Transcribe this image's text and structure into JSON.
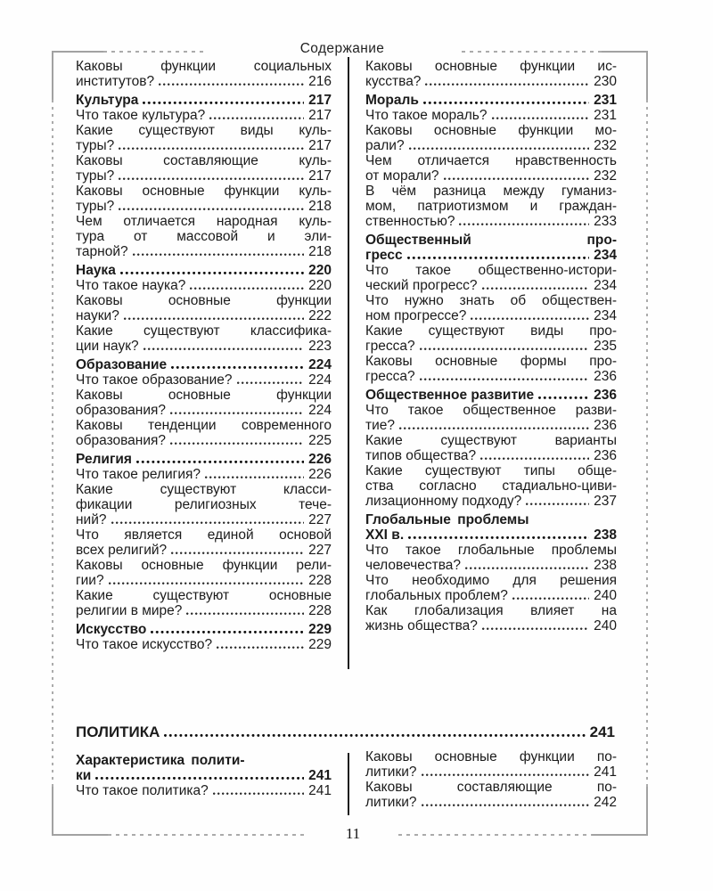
{
  "page": {
    "header_title": "Содержание",
    "page_number": "11"
  },
  "style": {
    "ink_color": "#1b1b1b",
    "frame_color": "#a2a2a2",
    "background_color": "#fefefe"
  },
  "toc": {
    "top_left": [
      {
        "lines": [
          "Каковы функции социальных"
        ],
        "last": "институтов?",
        "page": "216"
      },
      {
        "h": true,
        "last": "Культура",
        "page": "217"
      },
      {
        "last": "Что такое культура?",
        "page": "217"
      },
      {
        "lines": [
          "Какие существуют виды куль-"
        ],
        "last": "туры?",
        "page": "217"
      },
      {
        "lines": [
          "Каковы составляющие куль-"
        ],
        "last": "туры?",
        "page": "217"
      },
      {
        "lines": [
          "Каковы основные функции куль-"
        ],
        "last": "туры?",
        "page": "218"
      },
      {
        "lines": [
          "Чем отличается народная куль-",
          "тура от массовой и эли-"
        ],
        "last": "тарной?",
        "page": "218"
      },
      {
        "h": true,
        "last": "Наука",
        "page": "220"
      },
      {
        "last": "Что такое наука?",
        "page": "220"
      },
      {
        "lines": [
          "Каковы основные функции"
        ],
        "last": "науки?",
        "page": "222"
      },
      {
        "lines": [
          "Какие существуют классифика-"
        ],
        "last": "ции наук?",
        "page": "223"
      },
      {
        "h": true,
        "last": "Образование",
        "page": "224"
      },
      {
        "last": "Что такое образование?",
        "page": "224"
      },
      {
        "lines": [
          "Каковы основные функции"
        ],
        "last": "образования?",
        "page": "224"
      },
      {
        "lines": [
          "Каковы тенденции современного"
        ],
        "last": "образования?",
        "page": "225"
      },
      {
        "h": true,
        "last": "Религия",
        "page": "226"
      },
      {
        "last": "Что такое религия?",
        "page": "226"
      },
      {
        "lines": [
          "Какие существуют класси-",
          "фикации религиозных тече-"
        ],
        "last": "ний?",
        "page": "227"
      },
      {
        "lines": [
          "Что является единой основой"
        ],
        "last": "всех религий?",
        "page": "227"
      },
      {
        "lines": [
          "Каковы основные функции рели-"
        ],
        "last": "гии?",
        "page": "228"
      },
      {
        "lines": [
          "Какие существуют основные"
        ],
        "last": "религии в мире?",
        "page": "228"
      },
      {
        "h": true,
        "last": "Искусство",
        "page": "229"
      },
      {
        "last": "Что такое искусство?",
        "page": "229"
      }
    ],
    "top_right": [
      {
        "lines": [
          "Каковы основные функции ис-"
        ],
        "last": "кусства?",
        "page": "230"
      },
      {
        "h": true,
        "last": "Мораль",
        "page": "231"
      },
      {
        "last": "Что такое мораль?",
        "page": "231"
      },
      {
        "lines": [
          "Каковы основные функции мо-"
        ],
        "last": "рали?",
        "page": "232"
      },
      {
        "lines": [
          "Чем отличается нравственность"
        ],
        "last": "от морали?",
        "page": "232"
      },
      {
        "lines": [
          "В чём разница между гуманиз-",
          "мом, патриотизмом и граждан-"
        ],
        "last": "ственностью?",
        "page": "233"
      },
      {
        "h": true,
        "lines": [
          "Общественный про-"
        ],
        "last": "гресс",
        "page": "234"
      },
      {
        "lines": [
          "Что такое общественно-истори-"
        ],
        "last": "ческий прогресс?",
        "page": "234"
      },
      {
        "lines": [
          "Что нужно знать об обществен-"
        ],
        "last": "ном прогрессе?",
        "page": "234"
      },
      {
        "lines": [
          "Какие существуют виды про-"
        ],
        "last": "гресса?",
        "page": "235"
      },
      {
        "lines": [
          "Каковы основные формы про-"
        ],
        "last": "гресса?",
        "page": "236"
      },
      {
        "h": true,
        "last": "Общественное развитие",
        "page": "236"
      },
      {
        "lines": [
          "Что такое общественное разви-"
        ],
        "last": "тие?",
        "page": "236"
      },
      {
        "lines": [
          "Какие существуют варианты"
        ],
        "last": "типов общества?",
        "page": "236"
      },
      {
        "lines": [
          "Какие существуют типы обще-",
          "ства согласно стадиально-циви-"
        ],
        "last": "лизационному подходу?",
        "page": "237"
      },
      {
        "h": true,
        "nj": true,
        "lines": [
          "Глобальные проблемы"
        ],
        "last": "XXI в.",
        "page": "238"
      },
      {
        "lines": [
          "Что такое глобальные проблемы"
        ],
        "last": "человечества?",
        "page": "238"
      },
      {
        "lines": [
          "Что необходимо для решения"
        ],
        "last": "глобальных проблем?",
        "page": "240"
      },
      {
        "lines": [
          "Как глобализация влияет на"
        ],
        "last": "жизнь общества?",
        "page": "240"
      }
    ],
    "politics_heading": {
      "h": true,
      "last": "ПОЛИТИКА",
      "page": "241"
    },
    "bottom_left": [
      {
        "h": true,
        "nj": true,
        "lines": [
          "Характеристика полити-"
        ],
        "last": "ки",
        "page": "241"
      },
      {
        "last": "Что такое политика?",
        "page": "241"
      }
    ],
    "bottom_right": [
      {
        "lines": [
          "Каковы основные функции по-"
        ],
        "last": "литики?",
        "page": "241"
      },
      {
        "lines": [
          "Каковы составляющие по-"
        ],
        "last": "литики?",
        "page": "242"
      }
    ]
  }
}
